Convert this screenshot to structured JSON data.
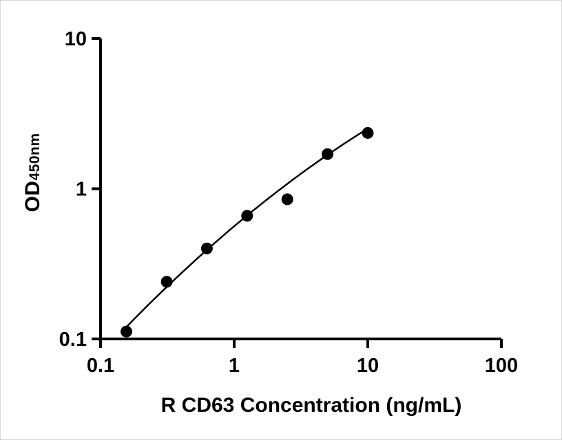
{
  "figure": {
    "background": "#ffffff"
  },
  "chart_data": {
    "type": "scatter",
    "title": "",
    "xlabel": "R CD63 Concentration (ng/mL)",
    "ylabel_main": "OD",
    "ylabel_sub": "450nm",
    "x_scale": "log",
    "y_scale": "log",
    "xlim": [
      0.1,
      100
    ],
    "ylim": [
      0.1,
      10
    ],
    "grid": false,
    "legend": false,
    "point_color": "#000000",
    "line_color": "#000000",
    "axis_color": "#000000",
    "x_ticks": [
      {
        "value": 0.1,
        "label": "0.1"
      },
      {
        "value": 1,
        "label": "1"
      },
      {
        "value": 10,
        "label": "10"
      },
      {
        "value": 100,
        "label": "100"
      }
    ],
    "y_ticks": [
      {
        "value": 0.1,
        "label": "0.1"
      },
      {
        "value": 1,
        "label": "1"
      },
      {
        "value": 10,
        "label": "10"
      }
    ],
    "points": [
      {
        "x": 0.156,
        "y": 0.112
      },
      {
        "x": 0.313,
        "y": 0.24
      },
      {
        "x": 0.625,
        "y": 0.4
      },
      {
        "x": 1.25,
        "y": 0.66
      },
      {
        "x": 2.5,
        "y": 0.85
      },
      {
        "x": 5,
        "y": 1.7
      },
      {
        "x": 10,
        "y": 2.35
      }
    ],
    "fit_curve": {
      "type": "quadratic_loglog",
      "coeffs": [
        -0.25,
        0.75,
        -0.1
      ],
      "x_start": 0.15,
      "x_end": 10
    }
  }
}
